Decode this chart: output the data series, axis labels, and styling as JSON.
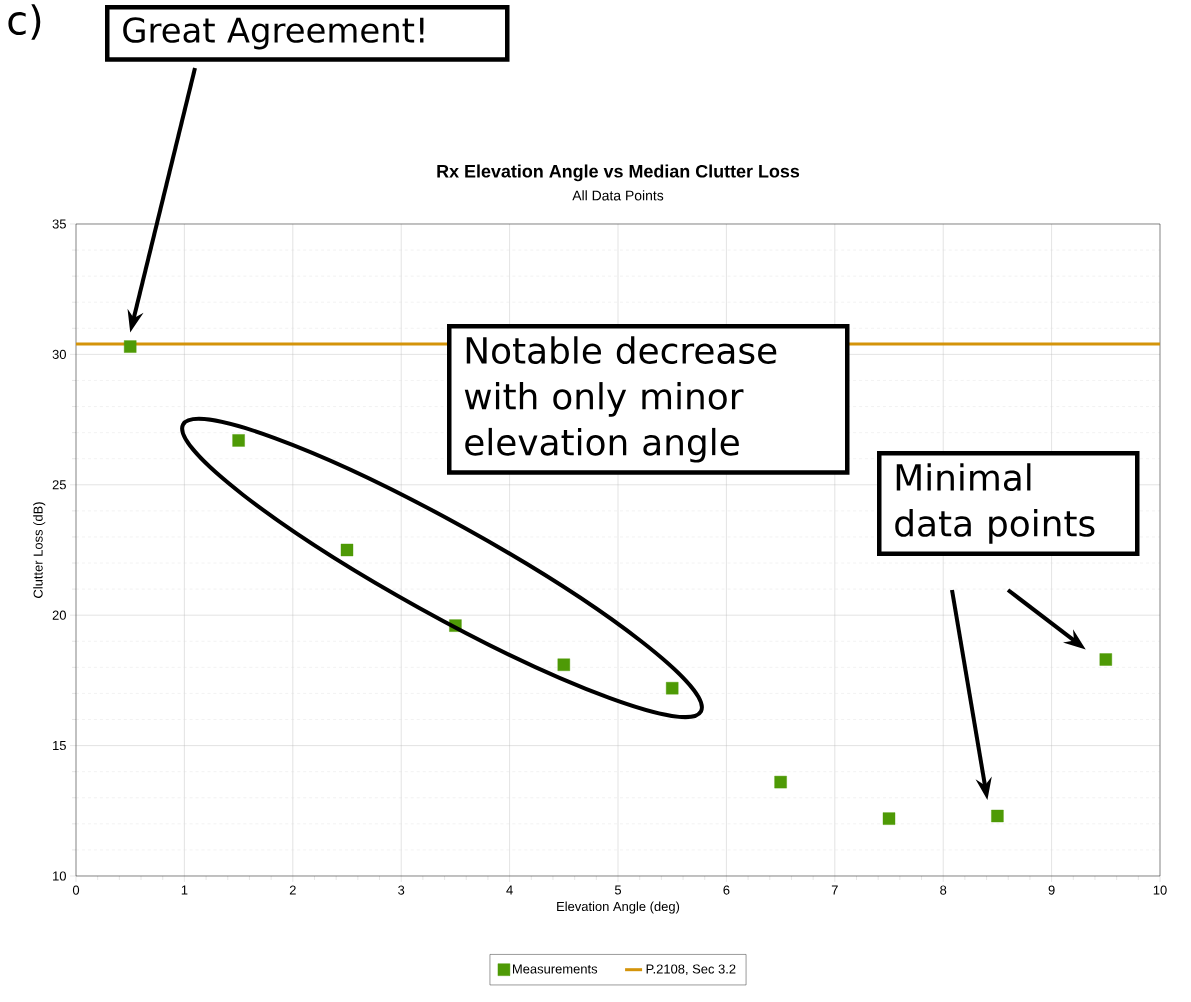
{
  "chart_data": {
    "type": "scatter",
    "title": "Rx Elevation Angle vs Median Clutter Loss",
    "subtitle": "All Data Points",
    "xlabel": "Elevation Angle (deg)",
    "ylabel": "Clutter Loss (dB)",
    "x": [
      0.5,
      1.5,
      2.5,
      3.5,
      4.5,
      5.5,
      6.5,
      7.5,
      8.5,
      9.5
    ],
    "series": [
      {
        "name": "Measurements",
        "marker": "square",
        "color": "#4e9a06",
        "values": [
          30.3,
          26.7,
          22.5,
          19.6,
          18.1,
          17.2,
          13.6,
          12.2,
          12.3,
          18.3
        ]
      },
      {
        "name": "P.2108, Sec 3.2",
        "type": "line",
        "marker": "none",
        "color": "#d4940a",
        "x": [
          0,
          10
        ],
        "values": [
          30.4,
          30.4
        ]
      }
    ],
    "xlim": [
      0,
      10
    ],
    "ylim": [
      10,
      35
    ],
    "xticks": [
      0,
      1,
      2,
      3,
      4,
      5,
      6,
      7,
      8,
      9,
      10
    ],
    "yticks": [
      10,
      15,
      20,
      25,
      30,
      35
    ],
    "grid": true,
    "legend": "bottom",
    "annotations": [
      "Great Agreement!",
      "Notable decrease with only minor elevation angle",
      "Minimal data points",
      "c)"
    ]
  }
}
